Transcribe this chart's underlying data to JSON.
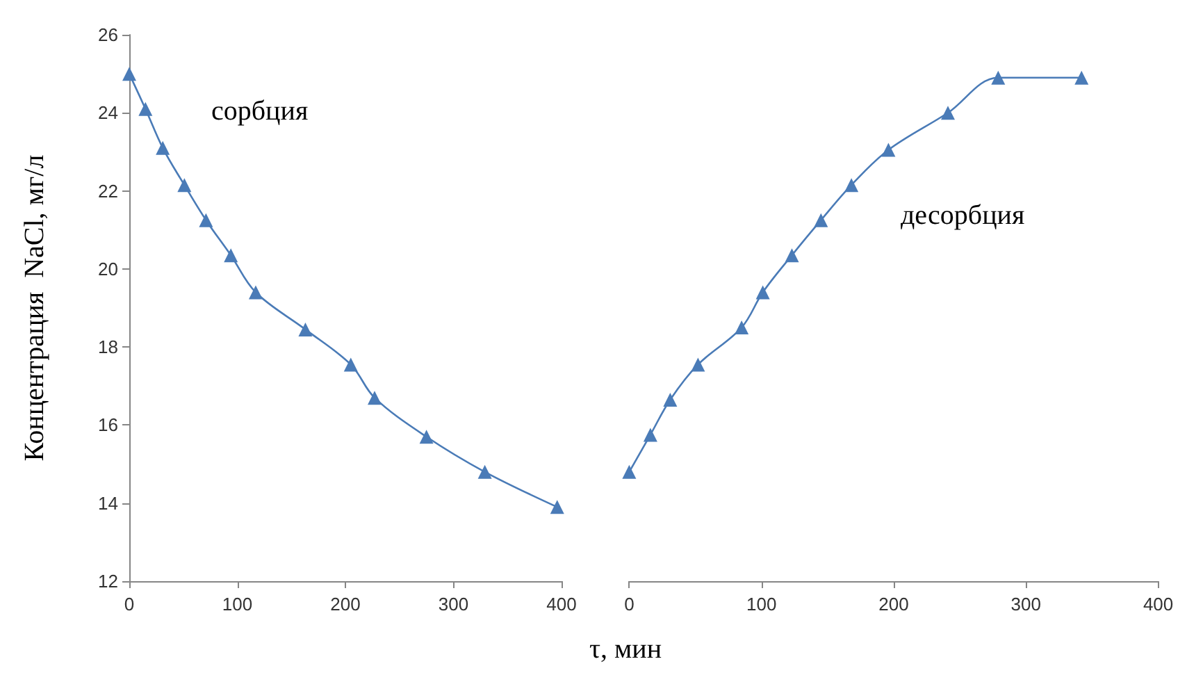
{
  "chart_data": [
    {
      "type": "line",
      "xlabel": "τ, мин",
      "ylabel": "Концентрация  NaCl, мг/л",
      "annotations": [
        "сорбция"
      ],
      "x": [
        0,
        15,
        31,
        51,
        71,
        94,
        117,
        163,
        205,
        227,
        275,
        329,
        396
      ],
      "series": [
        {
          "color": "#4a7bb7",
          "values": [
            25.0,
            24.1,
            23.1,
            22.15,
            21.25,
            20.35,
            19.4,
            18.45,
            17.55,
            16.7,
            15.7,
            14.8,
            13.9
          ]
        }
      ],
      "xlim": [
        0,
        400
      ],
      "xticks": [
        0,
        100,
        200,
        300,
        400
      ],
      "ylim": [
        12,
        26
      ],
      "yticks": [
        12,
        14,
        16,
        18,
        20,
        22,
        24,
        26
      ],
      "grid": false,
      "marker": "triangle",
      "line_style": "solid"
    },
    {
      "type": "line",
      "annotations": [
        "десорбция"
      ],
      "x": [
        0,
        16,
        31,
        52,
        85,
        101,
        123,
        145,
        168,
        196,
        241,
        279,
        342
      ],
      "series": [
        {
          "color": "#4a7bb7",
          "values": [
            14.8,
            15.75,
            16.65,
            17.55,
            18.5,
            19.4,
            20.35,
            21.25,
            22.15,
            23.05,
            24.0,
            24.9,
            24.9
          ]
        }
      ],
      "xlim": [
        0,
        400
      ],
      "xticks": [
        0,
        100,
        200,
        300,
        400
      ],
      "ylim": [
        12,
        26
      ],
      "yticks": [
        12,
        14,
        16,
        18,
        20,
        22,
        24,
        26
      ],
      "tick_labels": "x",
      "grid": false,
      "marker": "triangle",
      "line_style": "solid"
    }
  ]
}
